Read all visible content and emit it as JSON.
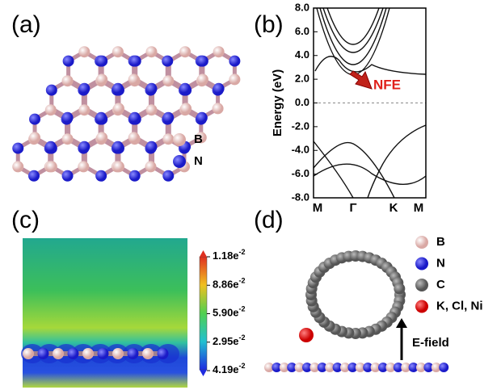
{
  "panels": {
    "a": "(a)",
    "b": "(b)",
    "c": "(c)",
    "d": "(d)"
  },
  "legend_a": [
    "B",
    "N"
  ],
  "band_structure": {
    "ylabel": "Energy (eV)",
    "ylim": [
      -8,
      8
    ],
    "yticks": [
      {
        "value": 8,
        "label": "8.0"
      },
      {
        "value": 6,
        "label": "6.0"
      },
      {
        "value": 4,
        "label": "4.0"
      },
      {
        "value": 2,
        "label": "2.0"
      },
      {
        "value": 0,
        "label": "0.0"
      },
      {
        "value": -2,
        "label": "-2.0"
      },
      {
        "value": -4,
        "label": "-4.0"
      },
      {
        "value": -6,
        "label": "-6.0"
      },
      {
        "value": -8,
        "label": "-8.0"
      }
    ],
    "kpoints": [
      "M",
      "Γ",
      "K",
      "M"
    ],
    "annotation": "NFE"
  },
  "colorbar": [
    {
      "base": "1.18e",
      "exp": "-2"
    },
    {
      "base": "8.86e",
      "exp": "-2"
    },
    {
      "base": "5.90e",
      "exp": "-2"
    },
    {
      "base": "2.95e",
      "exp": "-2"
    },
    {
      "base": "4.19e",
      "exp": "-2"
    }
  ],
  "legend_d": [
    "B",
    "N",
    "C",
    "K, Cl, Ni"
  ],
  "field_label": "E-field"
}
